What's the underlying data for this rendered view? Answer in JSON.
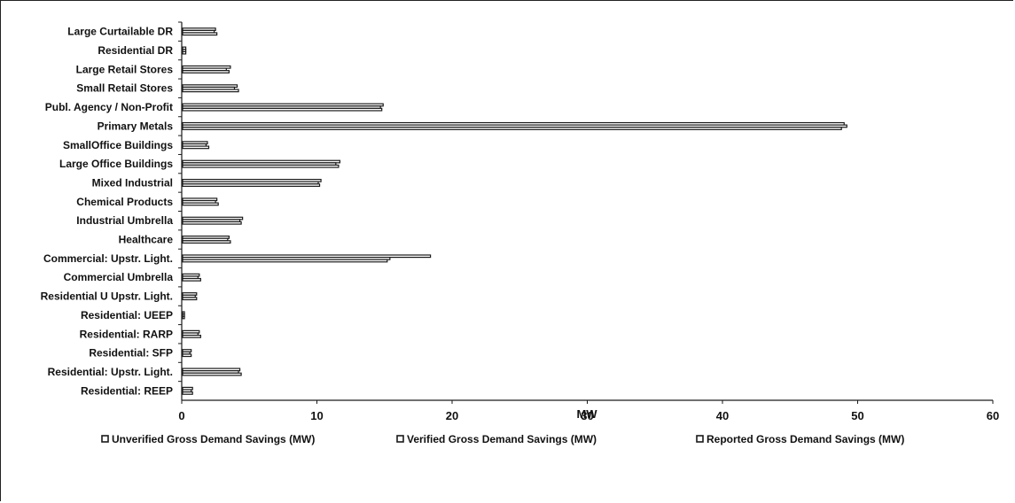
{
  "chart_data": {
    "type": "bar",
    "orientation": "horizontal",
    "title": "",
    "xlabel": "MW",
    "ylabel": "",
    "xlim": [
      0,
      60
    ],
    "xticks": [
      0,
      10,
      20,
      30,
      40,
      50,
      60
    ],
    "grid": false,
    "legend_position": "bottom",
    "categories": [
      "Large Curtailable DR",
      "Residential DR",
      "Large Retail Stores",
      "Small Retail Stores",
      "Publ. Agency / Non-Profit",
      "Primary Metals",
      "SmallOffice Buildings",
      "Large Office Buildings",
      "Mixed Industrial",
      "Chemical Products",
      "Industrial Umbrella",
      "Healthcare",
      "Commercial: Upstr. Light.",
      "Commercial Umbrella",
      "Residential U Upstr. Light.",
      "Residential: UEEP",
      "Residential: RARP",
      "Residential: SFP",
      "Residential: Upstr. Light.",
      "Residential: REEP"
    ],
    "series": [
      {
        "name": "Unverified Gross Demand Savings (MW)",
        "values": [
          2.5,
          0.3,
          3.6,
          4.1,
          14.9,
          49.0,
          1.9,
          11.7,
          10.3,
          2.6,
          4.5,
          3.5,
          18.4,
          1.3,
          1.1,
          0.2,
          1.3,
          0.7,
          4.3,
          0.8
        ]
      },
      {
        "name": "Verified Gross Demand Savings (MW)",
        "values": [
          2.4,
          0.3,
          3.3,
          3.9,
          14.7,
          49.2,
          1.8,
          11.4,
          10.1,
          2.5,
          4.3,
          3.4,
          15.4,
          1.2,
          1.0,
          0.2,
          1.2,
          0.6,
          4.2,
          0.7
        ]
      },
      {
        "name": "Reported Gross Demand Savings (MW)",
        "values": [
          2.6,
          0.3,
          3.5,
          4.2,
          14.8,
          48.8,
          2.0,
          11.6,
          10.2,
          2.7,
          4.4,
          3.6,
          15.2,
          1.4,
          1.1,
          0.2,
          1.4,
          0.7,
          4.4,
          0.8
        ]
      }
    ],
    "colors": {
      "bar_fill": "#ffffff",
      "bar_stroke": "#1a1a1a",
      "axis": "#1a1a1a",
      "text": "#111111"
    }
  }
}
